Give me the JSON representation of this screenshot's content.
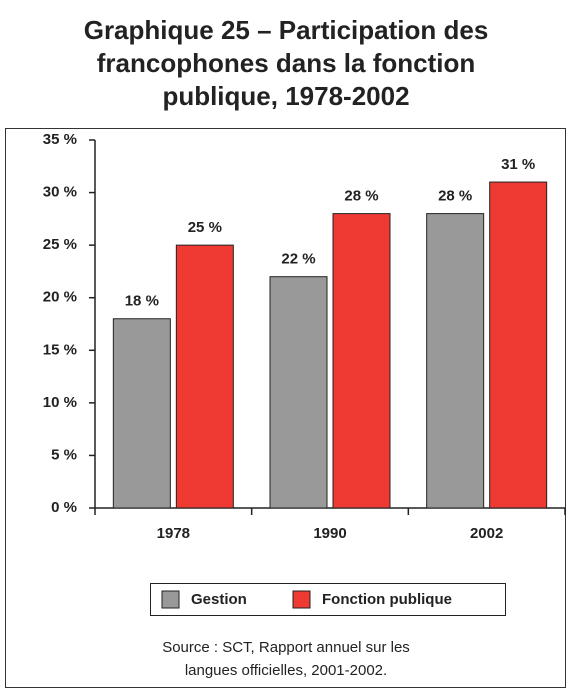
{
  "chart_data": {
    "type": "bar",
    "title": "Graphique 25 – Participation des francophones dans la fonction publique, 1978-2002",
    "categories": [
      "1978",
      "1990",
      "2002"
    ],
    "series": [
      {
        "name": "Gestion",
        "color": "#999999",
        "values": [
          18,
          22,
          28
        ],
        "value_labels": [
          "18 %",
          "22 %",
          "28 %"
        ]
      },
      {
        "name": "Fonction publique",
        "color": "#ee3a33",
        "values": [
          25,
          28,
          31
        ],
        "value_labels": [
          "25 %",
          "28 %",
          "31 %"
        ]
      }
    ],
    "ylim": [
      0,
      35
    ],
    "yticks": [
      {
        "value": 0,
        "label": "0 %"
      },
      {
        "value": 5,
        "label": "5 %"
      },
      {
        "value": 10,
        "label": "10 %"
      },
      {
        "value": 15,
        "label": "15 %"
      },
      {
        "value": 20,
        "label": "20 %"
      },
      {
        "value": 25,
        "label": "25 %"
      },
      {
        "value": 30,
        "label": "30 %"
      },
      {
        "value": 35,
        "label": "35 %"
      }
    ],
    "grid": false,
    "legend": "bottom",
    "source": "Source : SCT, Rapport annuel sur les langues officielles, 2001-2002."
  }
}
